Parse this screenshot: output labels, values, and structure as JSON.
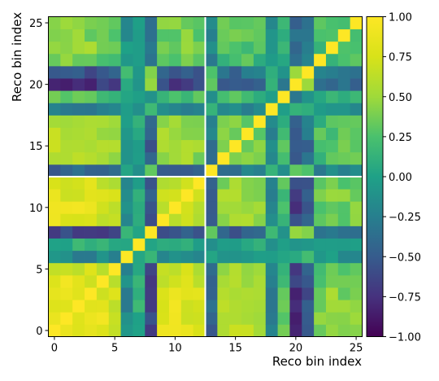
{
  "chart_data": {
    "type": "heatmap",
    "title": "",
    "xlabel": "Reco bin index",
    "ylabel": "Reco bin index",
    "x_ticks": [
      "0",
      "5",
      "10",
      "15",
      "20",
      "25"
    ],
    "y_ticks": [
      "0",
      "5",
      "10",
      "15",
      "20",
      "25"
    ],
    "n_bins": 26,
    "colormap": "viridis",
    "color_range": [
      -1.0,
      1.0
    ],
    "colorbar_ticks": [
      "1.00",
      "0.75",
      "0.50",
      "0.25",
      "0.00",
      "−0.25",
      "−0.50",
      "−0.75",
      "−1.00"
    ],
    "separator_line_at_bin": 12.5,
    "separator_color": "#ffffff",
    "description": "Symmetric correlation matrix with unit diagonal; two blocks separated at bin 12.5",
    "pattern": {
      "block_a": [
        0,
        1,
        2,
        3,
        4,
        5,
        9,
        10,
        11,
        12
      ],
      "block_b": [
        14,
        15,
        16,
        17,
        22,
        23,
        24,
        25
      ],
      "independent": [
        6,
        7,
        8,
        13,
        18,
        19,
        20,
        21
      ],
      "within_block_a": 0.85,
      "within_block_b": 0.55,
      "cross_block": 0.45,
      "independent_row": 0.05,
      "noise": 0.12,
      "bin_character": [
        1.0,
        1.0,
        0.95,
        0.95,
        0.9,
        0.8,
        -0.2,
        0.1,
        -0.7,
        0.85,
        0.9,
        0.85,
        0.8,
        -0.5,
        0.6,
        0.7,
        0.6,
        0.5,
        -0.3,
        0.3,
        -0.8,
        -0.6,
        0.4,
        0.5,
        0.45,
        0.5
      ]
    }
  }
}
